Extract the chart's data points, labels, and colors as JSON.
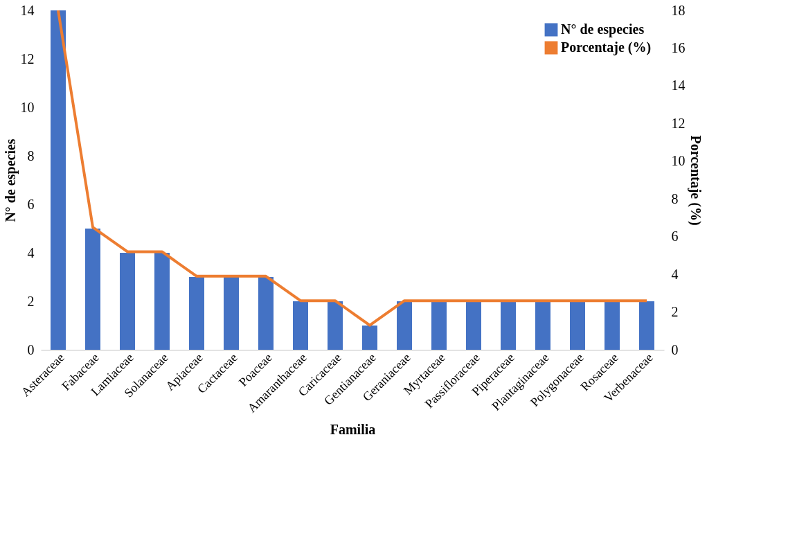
{
  "chart_data": {
    "type": "bar",
    "xlabel": "Familia",
    "ylabel": "N° de especies",
    "y2label": "Porcentaje (%)",
    "categories": [
      "Asteraceae",
      "Fabaceae",
      "Lamiaceae",
      "Solanaceae",
      "Apiaceae",
      "Cactaceae",
      "Poaceae",
      "Amaranthaceae",
      "Caricaceae",
      "Gentianaceae",
      "Geraniaceae",
      "Myrtaceae",
      "Passifloraceae",
      "Piperaceae",
      "Plantaginaceae",
      "Polygonaceae",
      "Rosaceae",
      "Verbenaceae"
    ],
    "series": [
      {
        "name": "N° de especies",
        "color": "#4472c4",
        "values": [
          14,
          5,
          4,
          4,
          3,
          3,
          3,
          2,
          2,
          1,
          2,
          2,
          2,
          2,
          2,
          2,
          2,
          2
        ]
      },
      {
        "name": "Porcentaje (%)",
        "type": "line",
        "axis": "y2",
        "color": "#ed7d31",
        "values": [
          18,
          6.5,
          5.2,
          5.2,
          3.9,
          3.9,
          3.9,
          2.6,
          2.6,
          1.3,
          2.6,
          2.6,
          2.6,
          2.6,
          2.6,
          2.6,
          2.6,
          2.6
        ]
      }
    ],
    "ylim": [
      0,
      14
    ],
    "yticks": [
      0,
      2,
      4,
      6,
      8,
      10,
      12,
      14
    ],
    "y2lim": [
      0,
      18
    ],
    "y2ticks": [
      0,
      2,
      4,
      6,
      8,
      10,
      12,
      14,
      16,
      18
    ],
    "grid": false,
    "legend": "top right"
  }
}
